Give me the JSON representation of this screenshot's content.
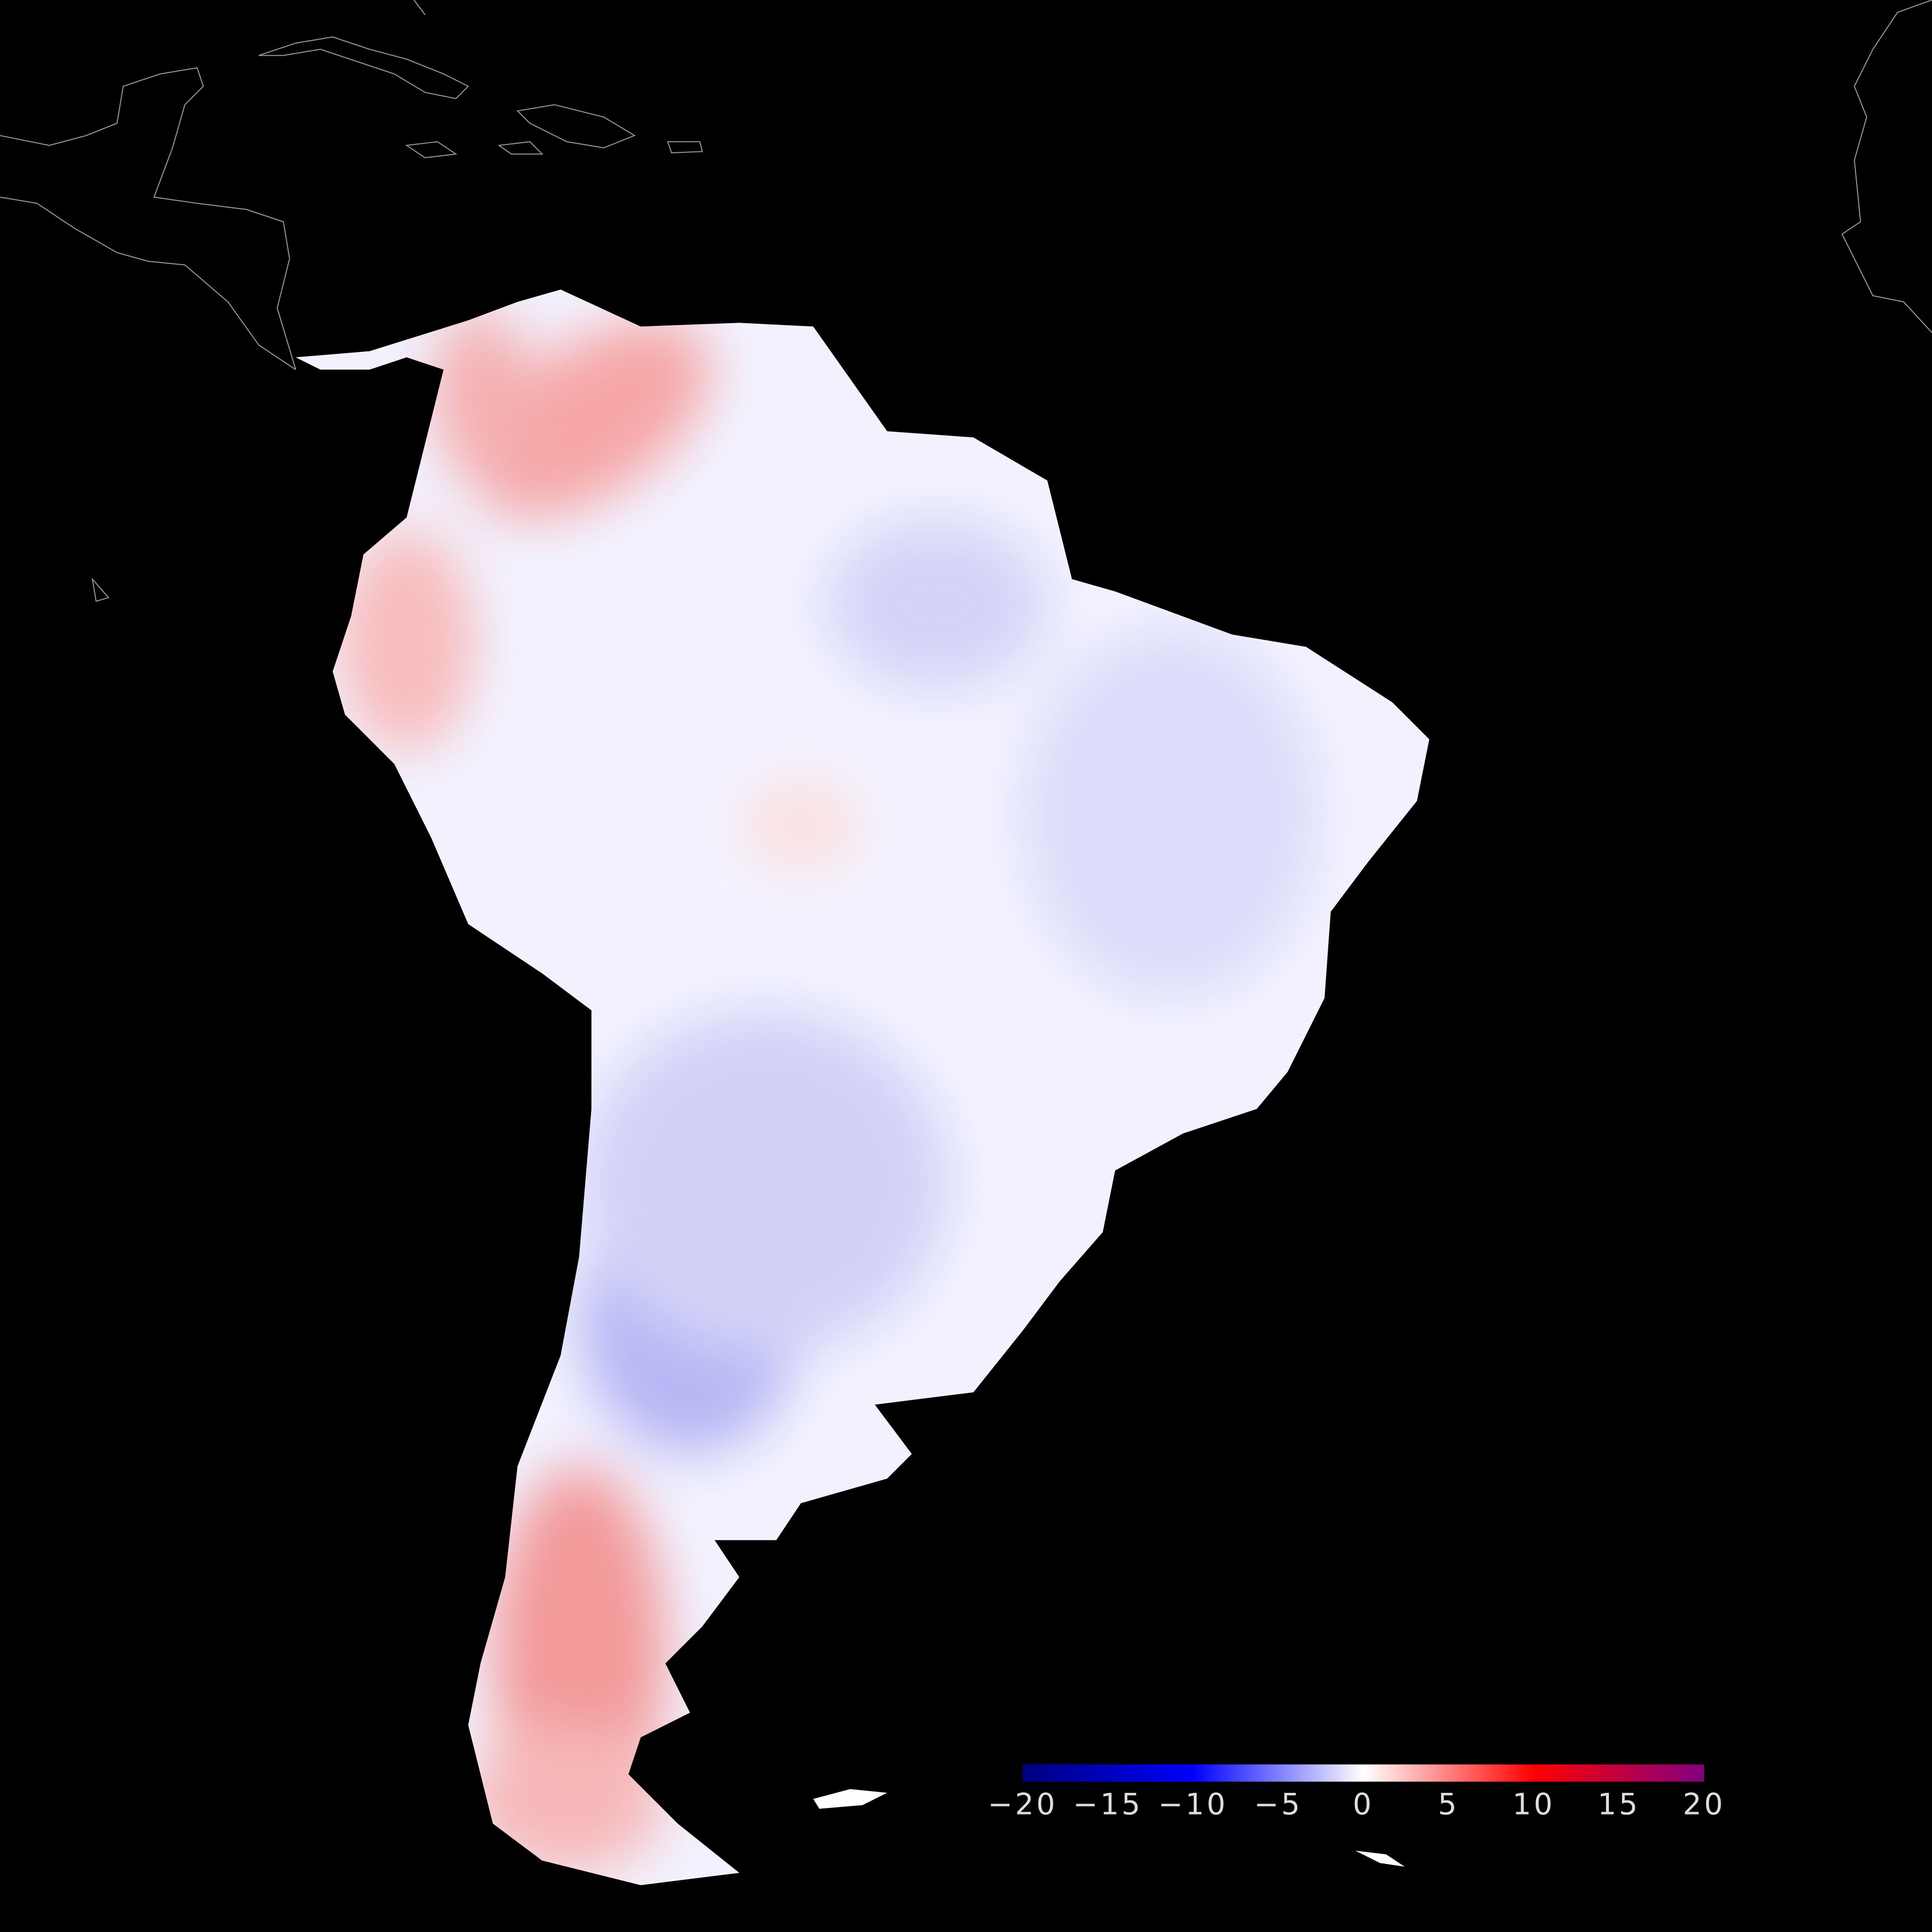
{
  "colorbar": {
    "lim": [
      -20,
      20
    ],
    "ticks": [
      {
        "value": -20,
        "label": "−20"
      },
      {
        "value": -15,
        "label": "−15"
      },
      {
        "value": -10,
        "label": "−10"
      },
      {
        "value": -5,
        "label": "−5"
      },
      0,
      5,
      10,
      15,
      20
    ],
    "colors": [
      "#000080",
      "#0000ff",
      "#ffffff",
      "#ff0000",
      "#800080"
    ]
  }
}
